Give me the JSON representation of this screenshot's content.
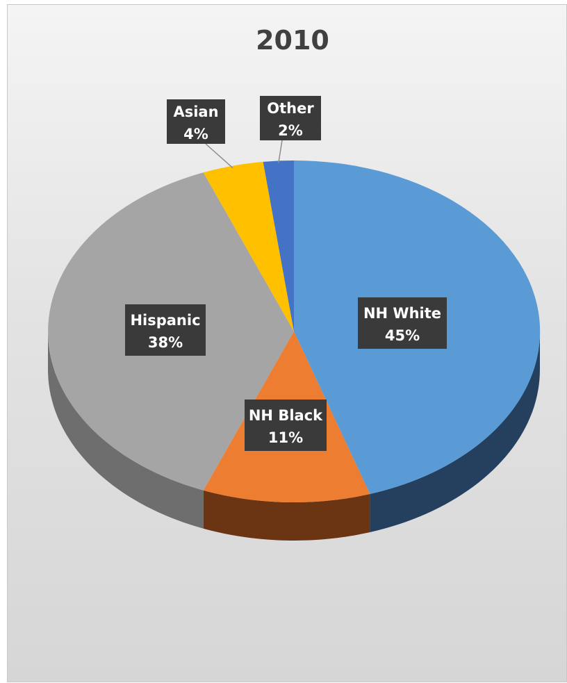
{
  "chart_data": {
    "type": "pie",
    "title": "2010",
    "slices": [
      {
        "label": "NH White",
        "value": 45,
        "value_label": "45%",
        "color": "#5b9bd5",
        "side_color": "#24405e"
      },
      {
        "label": "NH Black",
        "value": 11,
        "value_label": "11%",
        "color": "#ed7d31",
        "side_color": "#6b3514"
      },
      {
        "label": "Hispanic",
        "value": 38,
        "value_label": "38%",
        "color": "#a5a5a5",
        "side_color": "#6e6e6e"
      },
      {
        "label": "Asian",
        "value": 4,
        "value_label": "4%",
        "color": "#ffc000",
        "side_color": "#8a6900"
      },
      {
        "label": "Other",
        "value": 2,
        "value_label": "2%",
        "color": "#4472c4",
        "side_color": "#233c68"
      }
    ],
    "legend": "none",
    "style": "3d-pie"
  }
}
